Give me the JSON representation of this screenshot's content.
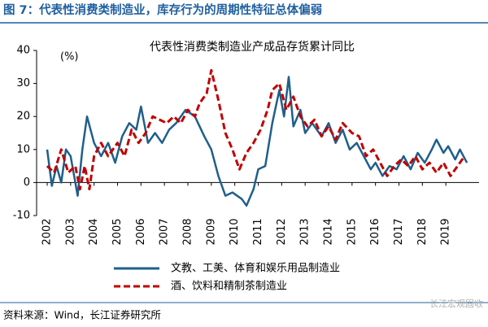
{
  "figure_title": "图 7：代表性消费类制造业，库存行为的周期性特征总体偏弱",
  "source": "资料来源：Wind，长江证券研究所",
  "watermark": "长江宏观固收",
  "chart_data": {
    "type": "line",
    "title": "代表性消费类制造业产成品存货累计同比",
    "y_unit_label": "(%)",
    "xlim": [
      2002,
      2020
    ],
    "xticks": [
      2002,
      2003,
      2004,
      2005,
      2006,
      2007,
      2008,
      2009,
      2010,
      2011,
      2012,
      2013,
      2014,
      2015,
      2016,
      2017,
      2018,
      2019
    ],
    "ylim": [
      -10,
      40
    ],
    "yticks": [
      -10,
      0,
      10,
      20,
      30,
      40
    ],
    "grid": false,
    "legend": "bottom",
    "series": [
      {
        "name": "文教、工美、体育和娱乐用品制造业",
        "color": "#1f5f8b",
        "style": "solid",
        "x": [
          2002.0,
          2002.2,
          2002.4,
          2002.6,
          2002.8,
          2003.0,
          2003.3,
          2003.5,
          2003.7,
          2004.0,
          2004.3,
          2004.6,
          2004.9,
          2005.2,
          2005.5,
          2005.8,
          2006.0,
          2006.3,
          2006.6,
          2006.9,
          2007.2,
          2007.5,
          2007.9,
          2008.3,
          2008.7,
          2009.0,
          2009.3,
          2009.6,
          2009.9,
          2010.3,
          2010.5,
          2010.8,
          2011.0,
          2011.3,
          2011.6,
          2011.9,
          2012.1,
          2012.3,
          2012.5,
          2012.8,
          2013.0,
          2013.3,
          2013.7,
          2014.0,
          2014.3,
          2014.6,
          2014.9,
          2015.2,
          2015.5,
          2015.8,
          2016.0,
          2016.3,
          2016.6,
          2016.9,
          2017.2,
          2017.5,
          2017.8,
          2018.1,
          2018.4,
          2018.6,
          2018.9,
          2019.1,
          2019.4,
          2019.6,
          2019.9
        ],
        "values": [
          10,
          -1,
          5,
          0,
          10,
          8,
          -4,
          10,
          20,
          12,
          8,
          12,
          6,
          14,
          18,
          16,
          23,
          12,
          15,
          12,
          16,
          18,
          22,
          20,
          14,
          10,
          2,
          -4,
          -3,
          -5,
          -7,
          -2,
          4,
          5,
          18,
          28,
          20,
          32,
          17,
          22,
          15,
          18,
          14,
          18,
          12,
          16,
          10,
          12,
          8,
          4,
          6,
          2,
          5,
          4,
          8,
          4,
          9,
          6,
          10,
          13,
          9,
          11,
          7,
          10,
          6
        ]
      },
      {
        "name": "酒、饮料和精制茶制造业",
        "color": "#c00000",
        "style": "dashed",
        "x": [
          2002.0,
          2002.3,
          2002.6,
          2002.9,
          2003.2,
          2003.4,
          2003.6,
          2003.8,
          2004.0,
          2004.3,
          2004.6,
          2005.0,
          2005.3,
          2005.6,
          2005.9,
          2006.2,
          2006.5,
          2006.8,
          2007.1,
          2007.4,
          2007.7,
          2008.0,
          2008.3,
          2008.5,
          2008.8,
          2009.0,
          2009.3,
          2009.6,
          2009.9,
          2010.2,
          2010.5,
          2010.8,
          2011.1,
          2011.4,
          2011.6,
          2011.9,
          2012.2,
          2012.5,
          2012.8,
          2013.1,
          2013.4,
          2013.7,
          2014.0,
          2014.3,
          2014.6,
          2015.0,
          2015.3,
          2015.6,
          2015.9,
          2016.2,
          2016.5,
          2016.8,
          2017.1,
          2017.4,
          2017.7,
          2018.0,
          2018.3,
          2018.6,
          2018.9,
          2019.2,
          2019.5,
          2019.8
        ],
        "values": [
          5,
          3,
          10,
          3,
          5,
          -2,
          5,
          -2,
          8,
          12,
          8,
          12,
          8,
          16,
          12,
          15,
          20,
          19,
          18,
          20,
          18,
          22,
          20,
          24,
          27,
          34,
          25,
          15,
          10,
          4,
          9,
          12,
          16,
          22,
          28,
          30,
          22,
          26,
          20,
          17,
          19,
          14,
          17,
          13,
          18,
          15,
          14,
          8,
          10,
          6,
          2,
          5,
          7,
          5,
          8,
          4,
          6,
          3,
          6,
          2,
          5,
          8
        ]
      }
    ]
  }
}
